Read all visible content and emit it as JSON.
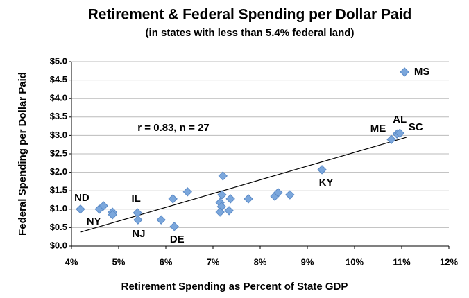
{
  "chart_data": {
    "type": "scatter",
    "title": "Retirement  & Federal Spending per Dollar Paid",
    "subtitle": "(in states with less than 5.4% federal land)",
    "x_label": "Retirement Spending as Percent of State GDP",
    "y_label": "Federal Spending per Dollar Paid",
    "annotation": "r = 0.83, n = 27",
    "color": "#7ba7dc",
    "x": [
      4.19,
      4.59,
      4.68,
      4.87,
      4.87,
      5.4,
      5.41,
      5.9,
      6.18,
      6.15,
      6.46,
      7.21,
      7.19,
      7.15,
      7.18,
      7.15,
      7.34,
      7.37,
      7.75,
      8.31,
      8.38,
      8.63,
      9.31,
      10.78,
      10.9,
      10.96,
      11.06
    ],
    "values": [
      1.0,
      1.0,
      1.09,
      0.92,
      0.85,
      0.9,
      0.71,
      0.71,
      0.53,
      1.28,
      1.47,
      1.9,
      1.39,
      1.18,
      1.07,
      0.92,
      0.96,
      1.28,
      1.28,
      1.35,
      1.45,
      1.39,
      2.07,
      2.89,
      3.04,
      3.06,
      4.72
    ],
    "labels": [
      "ND",
      "NY",
      null,
      null,
      null,
      "IL",
      "NJ",
      null,
      "DE",
      null,
      null,
      null,
      null,
      null,
      null,
      null,
      null,
      null,
      null,
      null,
      null,
      null,
      "KY",
      "ME",
      "AL",
      "SC",
      "MS"
    ],
    "trendline": {
      "x": [
        4.2,
        11.1
      ],
      "y": [
        0.38,
        2.95
      ]
    },
    "xlim": [
      4,
      12
    ],
    "xticks": [
      {
        "value": 4,
        "label": "4%"
      },
      {
        "value": 5,
        "label": "5%"
      },
      {
        "value": 6,
        "label": "6%"
      },
      {
        "value": 7,
        "label": "7%"
      },
      {
        "value": 8,
        "label": "8%"
      },
      {
        "value": 9,
        "label": "9%"
      },
      {
        "value": 10,
        "label": "10%"
      },
      {
        "value": 11,
        "label": "11%"
      },
      {
        "value": 12,
        "label": "12%"
      }
    ],
    "ylim": [
      0,
      5
    ],
    "yticks": [
      {
        "value": 0,
        "label": "$0.0"
      },
      {
        "value": 0.5,
        "label": "$0.5"
      },
      {
        "value": 1,
        "label": "$1.0"
      },
      {
        "value": 1.5,
        "label": "$1.5"
      },
      {
        "value": 2,
        "label": "$2.0"
      },
      {
        "value": 2.5,
        "label": "$2.5"
      },
      {
        "value": 3,
        "label": "$3.0"
      },
      {
        "value": 3.5,
        "label": "$3.5"
      },
      {
        "value": 4,
        "label": "$4.0"
      },
      {
        "value": 4.5,
        "label": "$4.5"
      },
      {
        "value": 5,
        "label": "$5.0"
      }
    ],
    "grid": true
  }
}
